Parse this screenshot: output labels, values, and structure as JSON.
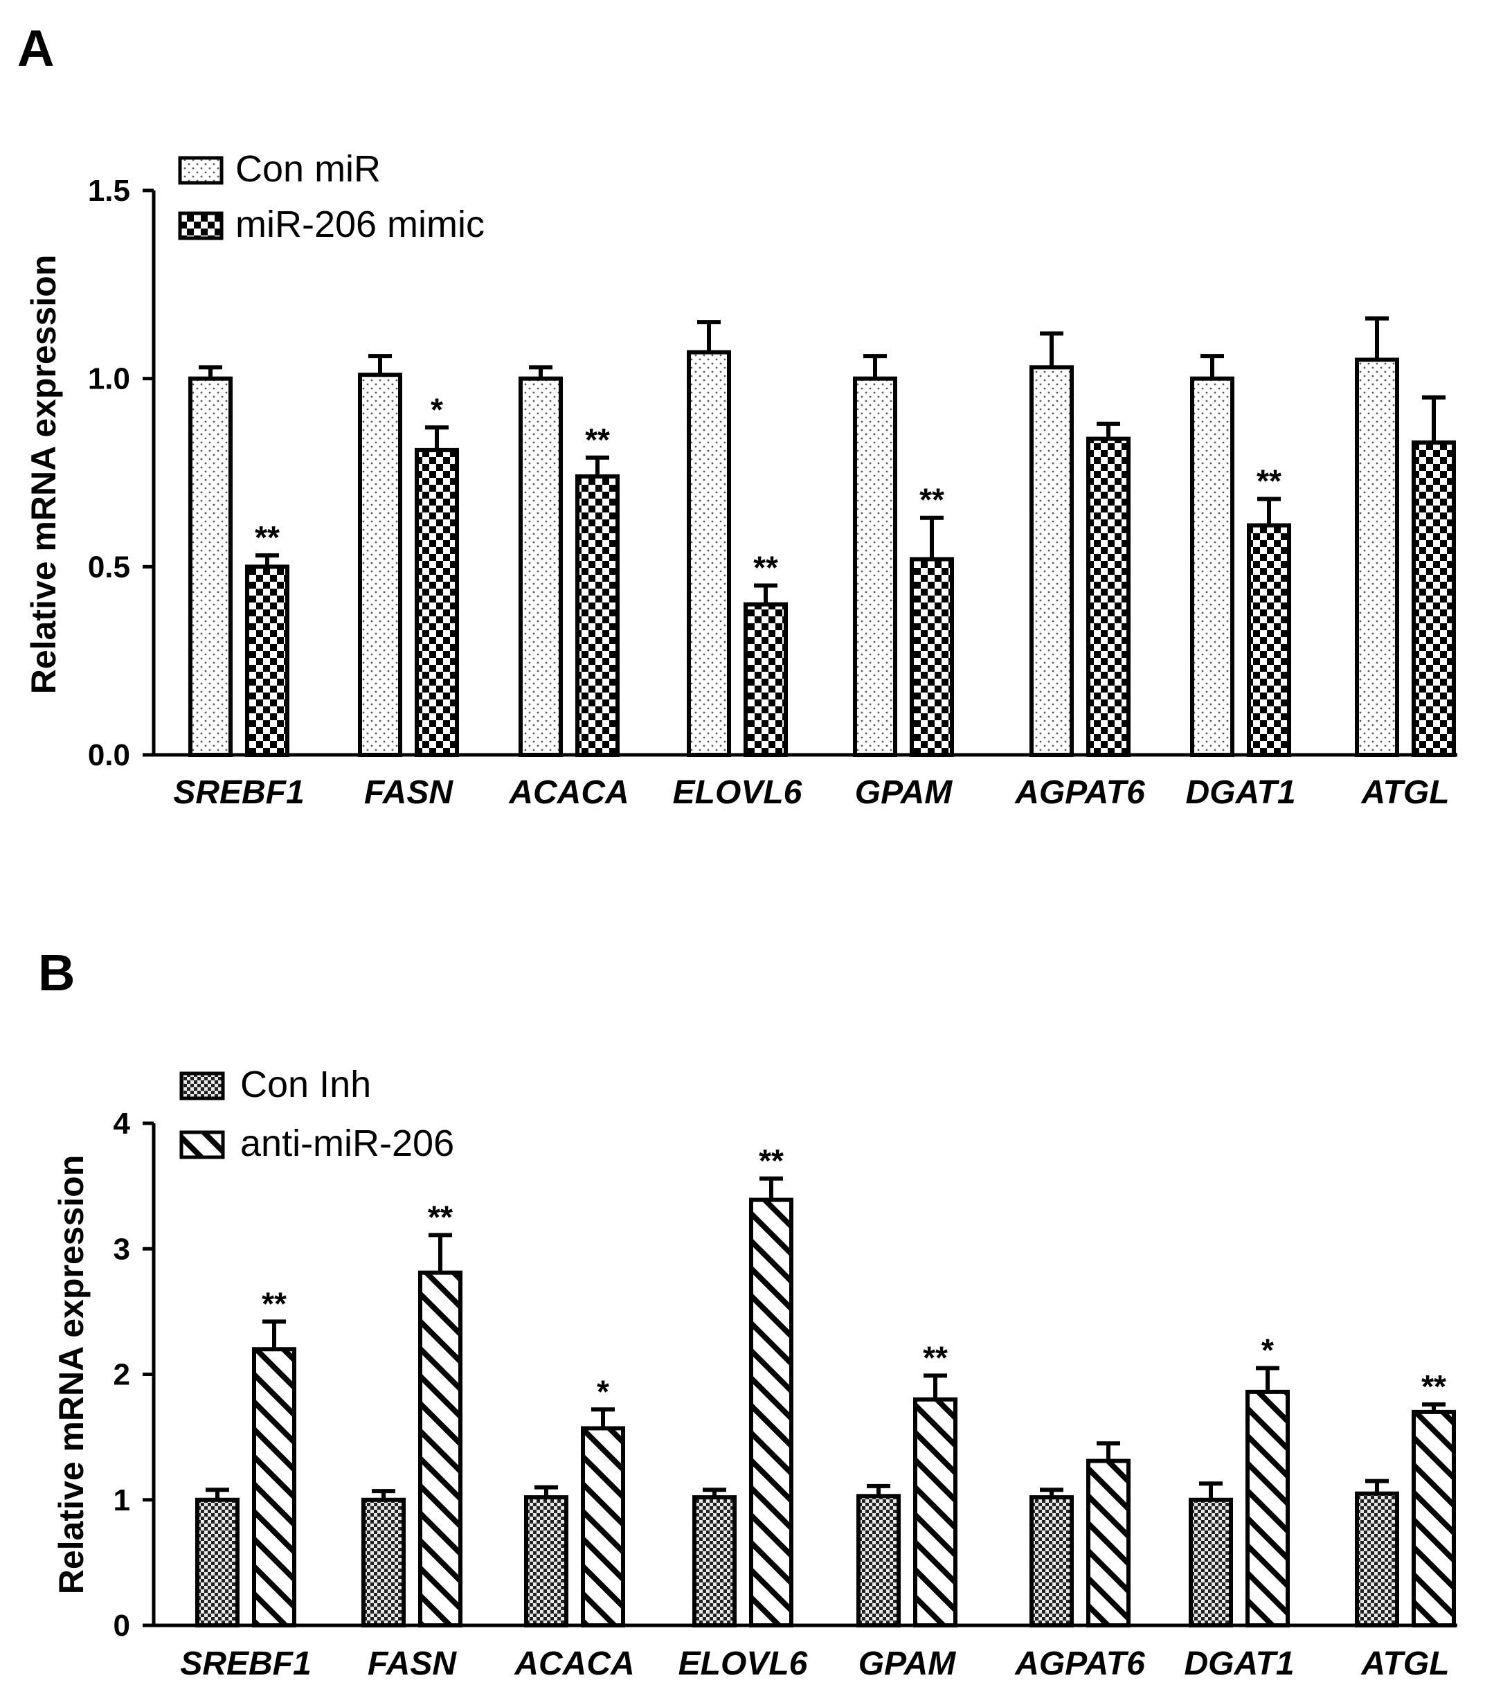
{
  "chart_data": [
    {
      "type": "bar",
      "panel": "A",
      "categories": [
        "SREBF1",
        "FASN",
        "ACACA",
        "ELOVL6",
        "GPAM",
        "AGPAT6",
        "DGAT1",
        "ATGL"
      ],
      "ylabel": "Relative mRNA expression",
      "xlabel": "",
      "ylim": [
        0,
        1.5
      ],
      "yticks": [
        "0.0",
        "0.5",
        "1.0",
        "1.5"
      ],
      "legend_position": "top-left",
      "series": [
        {
          "name": "Con miR",
          "pattern": "dots",
          "values": [
            1.0,
            1.01,
            1.0,
            1.07,
            1.0,
            1.03,
            1.0,
            1.05
          ],
          "errors": [
            0.03,
            0.05,
            0.03,
            0.08,
            0.06,
            0.09,
            0.06,
            0.11
          ],
          "significance": [
            "",
            "",
            "",
            "",
            "",
            "",
            "",
            ""
          ]
        },
        {
          "name": "miR-206 mimic",
          "pattern": "checker",
          "values": [
            0.5,
            0.81,
            0.74,
            0.4,
            0.52,
            0.84,
            0.61,
            0.83
          ],
          "errors": [
            0.03,
            0.06,
            0.05,
            0.05,
            0.11,
            0.04,
            0.07,
            0.12
          ],
          "significance": [
            "**",
            "*",
            "**",
            "**",
            "**",
            "",
            "**",
            ""
          ]
        }
      ]
    },
    {
      "type": "bar",
      "panel": "B",
      "categories": [
        "SREBF1",
        "FASN",
        "ACACA",
        "ELOVL6",
        "GPAM",
        "AGPAT6",
        "DGAT1",
        "ATGL"
      ],
      "ylabel": "Relative mRNA expression",
      "xlabel": "",
      "ylim": [
        0,
        4
      ],
      "yticks": [
        "0",
        "1",
        "2",
        "3",
        "4"
      ],
      "legend_position": "top-left",
      "series": [
        {
          "name": "Con Inh",
          "pattern": "fine-checker",
          "values": [
            1.0,
            1.0,
            1.02,
            1.02,
            1.03,
            1.02,
            1.0,
            1.05
          ],
          "errors": [
            0.08,
            0.07,
            0.08,
            0.06,
            0.08,
            0.06,
            0.13,
            0.1
          ],
          "significance": [
            "",
            "",
            "",
            "",
            "",
            "",
            "",
            ""
          ]
        },
        {
          "name": "anti-miR-206",
          "pattern": "diagonal",
          "values": [
            2.2,
            2.81,
            1.57,
            3.39,
            1.8,
            1.31,
            1.86,
            1.7
          ],
          "errors": [
            0.22,
            0.3,
            0.15,
            0.17,
            0.19,
            0.14,
            0.19,
            0.06
          ],
          "significance": [
            "**",
            "**",
            "*",
            "**",
            "**",
            "",
            "*",
            "**"
          ]
        }
      ]
    }
  ]
}
